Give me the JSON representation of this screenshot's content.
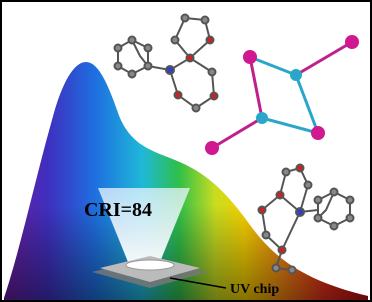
{
  "labels": {
    "cri": "CRI=84",
    "uv_chip": "UV chip"
  }
}
